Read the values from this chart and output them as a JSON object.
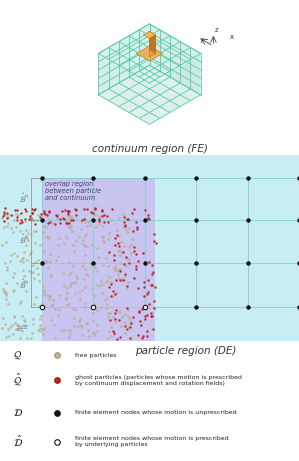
{
  "title_continuum": "continuum region (FE)",
  "title_particle": "particle region (DE)",
  "bg_color": "#ffffff",
  "fe_bg_color": "#c8eef5",
  "overlap_color": "#c8b8f0",
  "fe_mesh_color": "#55ccaa",
  "node_color_filled": "#111111",
  "overlap_label": "overlap region\nbetween particle\nand continuum",
  "free_particle_color": "#c8b89a",
  "free_particle_edge": "#a09070",
  "ghost_particle_color": "#cc2222",
  "ghost_particle_edge": "#991111",
  "grid_line_color": "#88cccc",
  "axis_label_color": "#999999"
}
